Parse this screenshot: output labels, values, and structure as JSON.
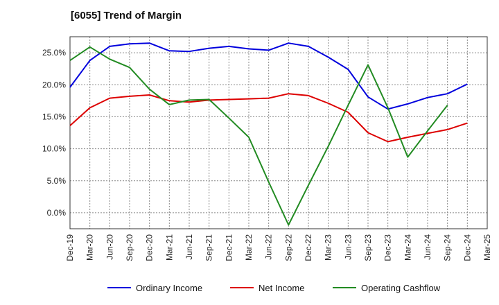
{
  "chart_data": {
    "type": "line",
    "title": "[6055]  Trend of Margin",
    "xlabel": "",
    "ylabel": "",
    "categories": [
      "Dec-19",
      "Mar-20",
      "Jun-20",
      "Sep-20",
      "Dec-20",
      "Mar-21",
      "Jun-21",
      "Sep-21",
      "Dec-21",
      "Mar-22",
      "Jun-22",
      "Sep-22",
      "Dec-22",
      "Mar-23",
      "Jun-23",
      "Sep-23",
      "Dec-23",
      "Mar-24",
      "Jun-24",
      "Sep-24",
      "Dec-24",
      "Mar-25"
    ],
    "y_ticks": [
      "0.0%",
      "5.0%",
      "10.0%",
      "15.0%",
      "20.0%",
      "25.0%"
    ],
    "ylim": [
      -2.5,
      27.5
    ],
    "grid": true,
    "legend_position": "bottom",
    "series": [
      {
        "name": "Ordinary Income",
        "color": "#0000dd",
        "values": [
          19.6,
          23.8,
          26.0,
          26.4,
          26.5,
          25.3,
          25.2,
          25.7,
          26.0,
          25.6,
          25.4,
          26.5,
          26.0,
          24.3,
          22.4,
          18.1,
          16.2,
          17.0,
          18.0,
          18.6,
          20.1,
          null
        ]
      },
      {
        "name": "Net Income",
        "color": "#dd0000",
        "values": [
          13.6,
          16.4,
          17.9,
          18.2,
          18.4,
          17.5,
          17.3,
          17.6,
          17.7,
          17.8,
          17.9,
          18.6,
          18.3,
          17.1,
          15.7,
          12.5,
          11.1,
          11.8,
          12.4,
          13.0,
          14.0,
          null
        ]
      },
      {
        "name": "Operating Cashflow",
        "color": "#228b22",
        "values": [
          23.8,
          25.9,
          24.0,
          22.7,
          19.3,
          16.9,
          17.6,
          17.7,
          14.8,
          11.8,
          4.8,
          -1.9,
          4.3,
          10.4,
          16.8,
          23.1,
          16.4,
          8.7,
          12.8,
          16.8,
          null,
          null
        ]
      }
    ]
  }
}
